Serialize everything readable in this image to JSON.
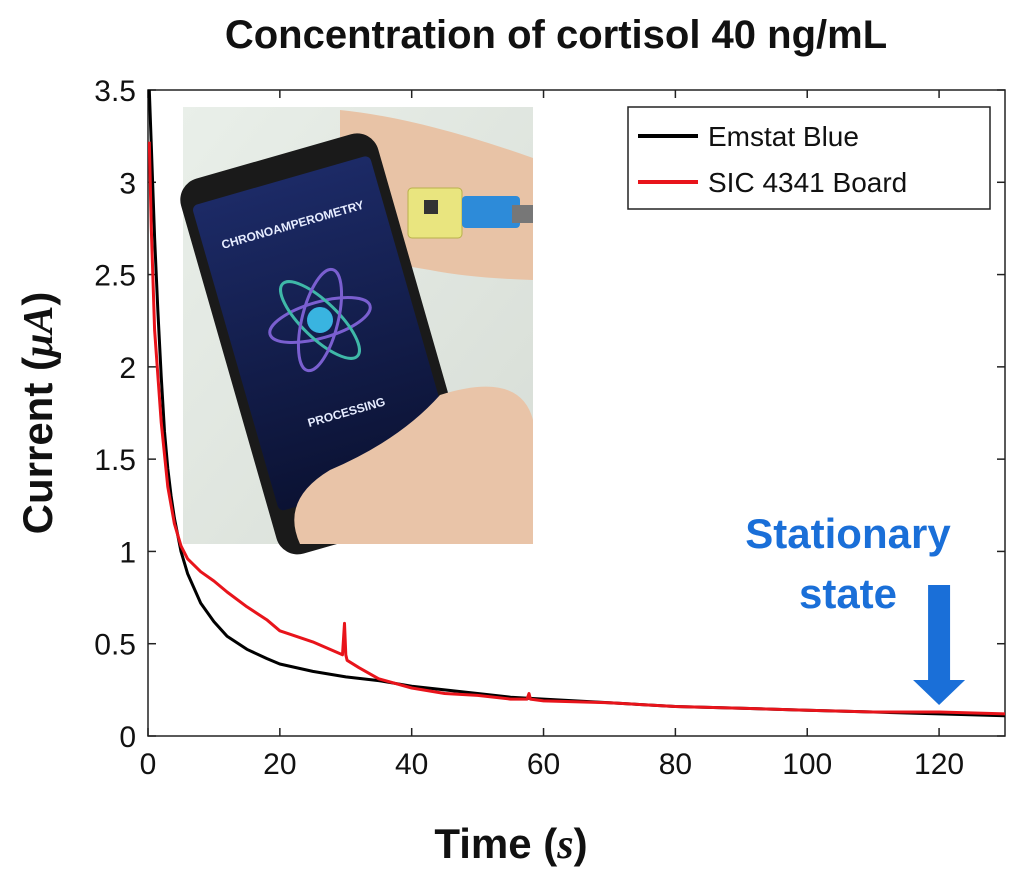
{
  "chart_data": {
    "type": "line",
    "title": "Concentration of cortisol 40 ng/mL",
    "xlabel": "Time (s)",
    "ylabel": "Current (μA)",
    "xlim": [
      0,
      130
    ],
    "ylim": [
      0,
      3.5
    ],
    "xticks": [
      0,
      20,
      40,
      60,
      80,
      100,
      120
    ],
    "yticks": [
      0,
      0.5,
      1,
      1.5,
      2,
      2.5,
      3,
      3.5
    ],
    "ytick_labels": [
      "0",
      "0.5",
      "1",
      "1.5",
      "2",
      "2.5",
      "3",
      "3.5"
    ],
    "grid": false,
    "legend_position": "top-right",
    "series": [
      {
        "name": "Emstat Blue",
        "color": "#000000",
        "x": [
          0.2,
          0.5,
          1,
          1.5,
          2,
          2.5,
          3,
          3.5,
          4,
          5,
          6,
          8,
          10,
          12,
          15,
          18,
          20,
          25,
          30,
          35,
          40,
          45,
          50,
          55,
          60,
          70,
          80,
          90,
          100,
          110,
          120,
          130
        ],
        "y": [
          3.5,
          3.2,
          2.7,
          2.3,
          1.95,
          1.65,
          1.45,
          1.3,
          1.18,
          1.0,
          0.88,
          0.72,
          0.62,
          0.54,
          0.47,
          0.42,
          0.39,
          0.35,
          0.32,
          0.3,
          0.27,
          0.25,
          0.23,
          0.21,
          0.2,
          0.18,
          0.16,
          0.15,
          0.14,
          0.13,
          0.12,
          0.11
        ]
      },
      {
        "name": "SIC 4341 Board",
        "color": "#e8141b",
        "x": [
          0.2,
          0.5,
          1,
          2,
          3,
          4,
          5,
          6,
          8,
          10,
          12,
          15,
          18,
          20,
          25,
          29.5,
          29.8,
          30,
          30.2,
          32,
          35,
          40,
          45,
          50,
          55,
          57.5,
          57.8,
          58,
          60,
          70,
          80,
          90,
          100,
          110,
          120,
          130
        ],
        "y": [
          3.22,
          2.75,
          2.2,
          1.7,
          1.35,
          1.15,
          1.03,
          0.96,
          0.89,
          0.84,
          0.78,
          0.7,
          0.63,
          0.57,
          0.51,
          0.44,
          0.61,
          0.44,
          0.41,
          0.37,
          0.31,
          0.26,
          0.23,
          0.22,
          0.2,
          0.2,
          0.23,
          0.2,
          0.19,
          0.18,
          0.16,
          0.15,
          0.14,
          0.13,
          0.13,
          0.12
        ]
      }
    ],
    "annotations": [
      {
        "text_lines": [
          "Stationary",
          "state"
        ],
        "x": 120,
        "arrow": "down",
        "color": "#1a6fd8"
      }
    ],
    "inset_photo": {
      "screen_texts": [
        "CHRONOAMPEROMETRY",
        "PROCESSING"
      ]
    }
  }
}
